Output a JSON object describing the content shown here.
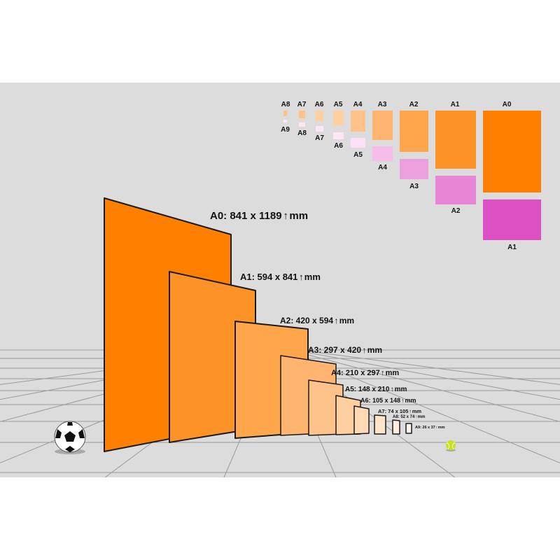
{
  "main_sheets": [
    {
      "name": "A0",
      "label": "A0: 841 x 1189",
      "unit": "mm",
      "color": "#ff8000"
    },
    {
      "name": "A1",
      "label": "A1: 594 x 841",
      "unit": "mm",
      "color": "#fd9226"
    },
    {
      "name": "A2",
      "label": "A2: 420 x 594",
      "unit": "mm",
      "color": "#ffa64d"
    },
    {
      "name": "A3",
      "label": "A3: 297 x 420",
      "unit": "mm",
      "color": "#ffb56f"
    },
    {
      "name": "A4",
      "label": "A4: 210 x 297",
      "unit": "mm",
      "color": "#ffc28a"
    },
    {
      "name": "A5",
      "label": "A5: 148 x 210",
      "unit": "mm",
      "color": "#ffcf9f"
    },
    {
      "name": "A6",
      "label": "A6: 105 x 148",
      "unit": "mm",
      "color": "#ffdab5"
    },
    {
      "name": "A7",
      "label": "A7: 74 x 105",
      "unit": "mm",
      "color": "#ffe4ca"
    },
    {
      "name": "A8",
      "label": "A8: 52 x 74",
      "unit": "mm",
      "color": "#fdeedd"
    },
    {
      "name": "A9",
      "label": "A9: 26 x 37",
      "unit": "mm",
      "color": "#fff5ec"
    }
  ],
  "comparison": {
    "top_row": [
      {
        "label": "A0",
        "color": "#ff8000"
      },
      {
        "label": "A1",
        "color": "#fd9226"
      },
      {
        "label": "A2",
        "color": "#ffa64d"
      },
      {
        "label": "A3",
        "color": "#ffb56f"
      },
      {
        "label": "A4",
        "color": "#ffc28a"
      },
      {
        "label": "A5",
        "color": "#ffcf9f"
      },
      {
        "label": "A6",
        "color": "#ffcf9f"
      },
      {
        "label": "A7",
        "color": "#ffc28a"
      },
      {
        "label": "A8",
        "color": "#ffc28a"
      }
    ],
    "bottom_row": [
      {
        "label": "A1",
        "color": "#dd50c4"
      },
      {
        "label": "A2",
        "color": "#e885d6"
      },
      {
        "label": "A3",
        "color": "#eca0de"
      },
      {
        "label": "A4",
        "color": "#f7bdea"
      },
      {
        "label": "A5",
        "color": "#fde0f6"
      },
      {
        "label": "A6",
        "color": "#fde6f6"
      },
      {
        "label": "A7",
        "color": "#fde6f6"
      },
      {
        "label": "A8",
        "color": "#fde6f6"
      },
      {
        "label": "A9",
        "color": "#fde6f6"
      }
    ]
  },
  "icons": {
    "soccer_ball": "soccer-ball-icon",
    "tennis_ball": "tennis-ball-icon",
    "arrow": "up-arrow-icon"
  },
  "colors": {
    "background": "#dcdcdc",
    "grid": "#9a9a9a",
    "outline": "#1a1a1a"
  }
}
